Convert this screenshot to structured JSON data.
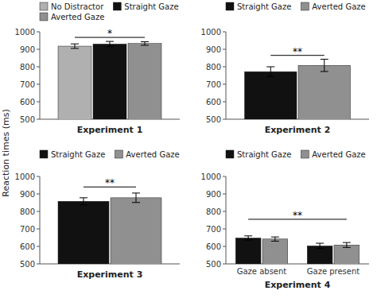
{
  "chart_data": [
    {
      "type": "bar",
      "xlabel": "Experiment 1",
      "ylabel": "Reaction times (ms)",
      "categories": [
        null
      ],
      "series": [
        {
          "name": "No Distractor",
          "color": "#b0b0b0",
          "values": [
            918
          ],
          "errors": [
            13
          ]
        },
        {
          "name": "Straight Gaze",
          "color": "#111111",
          "values": [
            930
          ],
          "errors": [
            15
          ]
        },
        {
          "name": "Averted Gaze",
          "color": "#909090",
          "values": [
            933
          ],
          "errors": [
            10
          ]
        }
      ],
      "ylim": [
        500,
        1000
      ],
      "yticks": [
        500,
        600,
        700,
        800,
        900,
        1000
      ],
      "annotations": [
        {
          "text": "*",
          "y": 968
        }
      ],
      "legend": "top"
    },
    {
      "type": "bar",
      "xlabel": "Experiment 2",
      "categories": [
        null
      ],
      "series": [
        {
          "name": "Straight Gaze",
          "color": "#111111",
          "values": [
            772
          ],
          "errors": [
            28
          ]
        },
        {
          "name": "Averted Gaze",
          "color": "#909090",
          "values": [
            808
          ],
          "errors": [
            35
          ]
        }
      ],
      "ylim": [
        500,
        1000
      ],
      "yticks": [
        500,
        600,
        700,
        800,
        900,
        1000
      ],
      "annotations": [
        {
          "text": "**",
          "y": 865
        }
      ],
      "legend": "top"
    },
    {
      "type": "bar",
      "xlabel": "Experiment 3",
      "categories": [
        null
      ],
      "series": [
        {
          "name": "Straight Gaze",
          "color": "#111111",
          "values": [
            858
          ],
          "errors": [
            20
          ]
        },
        {
          "name": "Averted Gaze",
          "color": "#909090",
          "values": [
            878
          ],
          "errors": [
            27
          ]
        }
      ],
      "ylim": [
        500,
        1000
      ],
      "yticks": [
        500,
        600,
        700,
        800,
        900,
        1000
      ],
      "annotations": [
        {
          "text": "**",
          "y": 940
        }
      ],
      "legend": "top"
    },
    {
      "type": "bar",
      "xlabel": "Experiment 4",
      "categories": [
        "Gaze absent",
        "Gaze present"
      ],
      "series": [
        {
          "name": "Straight Gaze",
          "color": "#111111",
          "values": [
            648,
            603
          ],
          "errors": [
            12,
            15
          ]
        },
        {
          "name": "Averted Gaze",
          "color": "#909090",
          "values": [
            642,
            608
          ],
          "errors": [
            12,
            14
          ]
        }
      ],
      "ylim": [
        500,
        1000
      ],
      "yticks": [
        500,
        600,
        700,
        800,
        900,
        1000
      ],
      "annotations": [
        {
          "text": "**",
          "y": 755
        }
      ],
      "legend": "top"
    }
  ]
}
